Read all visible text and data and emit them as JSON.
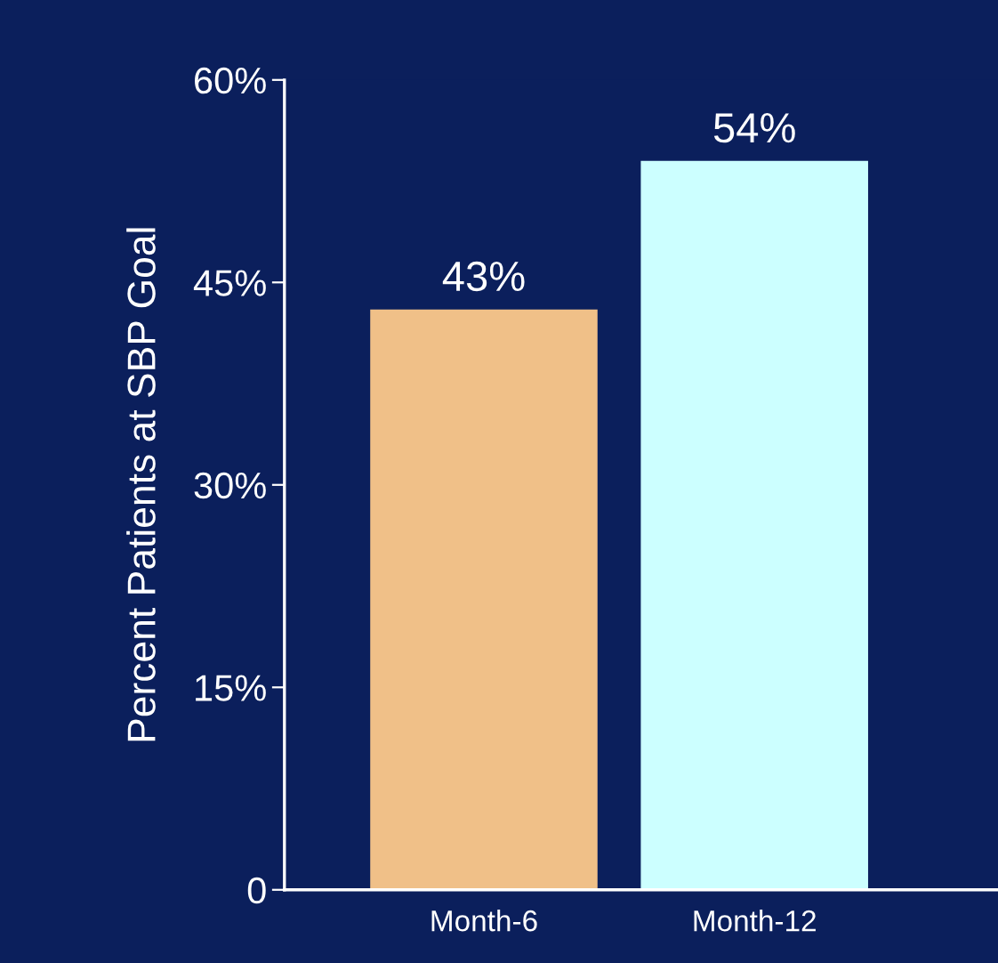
{
  "chart_data": {
    "type": "bar",
    "ylabel": "Percent Patients at SBP Goal",
    "categories": [
      "Month-6",
      "Month-12"
    ],
    "values": [
      43,
      54
    ],
    "colors": [
      "#f0c088",
      "#ccffff"
    ],
    "value_labels": [
      "43%",
      "54%"
    ],
    "ylim": [
      0,
      60
    ],
    "yticks": [
      0,
      {
        "value": 15,
        "label": "15%"
      },
      {
        "value": 30,
        "label": "30%"
      },
      {
        "value": 45,
        "label": "45%"
      },
      {
        "value": 60,
        "label": "60%"
      }
    ],
    "grid": false,
    "legend": false
  }
}
